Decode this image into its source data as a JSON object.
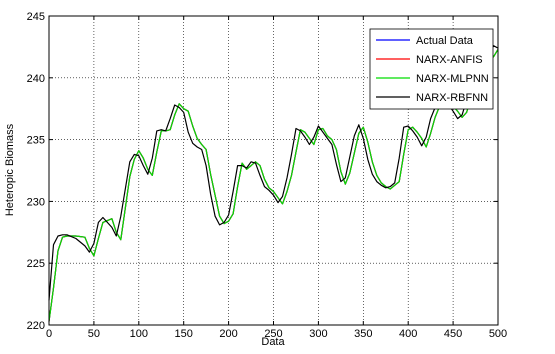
{
  "chart_data": {
    "type": "line",
    "xlabel": "Data",
    "ylabel": "Heteropic Biomass",
    "xlim": [
      0,
      500
    ],
    "ylim": [
      220,
      245
    ],
    "xticks": [
      0,
      50,
      100,
      150,
      200,
      250,
      300,
      350,
      400,
      450,
      500
    ],
    "yticks": [
      220,
      225,
      230,
      235,
      240,
      245
    ],
    "grid": true,
    "legend_position": "top-right",
    "series": [
      {
        "name": "Actual Data",
        "color": "#0000ff",
        "x": [
          0,
          5,
          10,
          15,
          20,
          30,
          40,
          45,
          50,
          55,
          60,
          70,
          75,
          80,
          90,
          95,
          100,
          105,
          110,
          115,
          120,
          125,
          130,
          135,
          140,
          145,
          150,
          155,
          160,
          165,
          170,
          175,
          180,
          185,
          190,
          195,
          200,
          205,
          210,
          215,
          220,
          225,
          230,
          235,
          240,
          245,
          250,
          255,
          260,
          265,
          270,
          275,
          280,
          285,
          290,
          295,
          300,
          305,
          310,
          315,
          320,
          325,
          330,
          335,
          340,
          345,
          350,
          355,
          360,
          365,
          370,
          375,
          380,
          385,
          390,
          395,
          400,
          405,
          410,
          415,
          420,
          425,
          430,
          435,
          440,
          445,
          450,
          455,
          460,
          465,
          470,
          475,
          480,
          485,
          490,
          495,
          500
        ],
        "y": [
          220.3,
          223.0,
          226.0,
          227.1,
          227.2,
          227.2,
          227.1,
          226.2,
          225.6,
          227.0,
          228.3,
          228.6,
          227.5,
          226.9,
          232.0,
          233.4,
          234.1,
          233.5,
          232.6,
          232.1,
          234.0,
          235.7,
          235.7,
          235.8,
          237.0,
          237.9,
          237.5,
          237.3,
          236.1,
          235.1,
          234.6,
          234.2,
          232.2,
          230.5,
          228.8,
          228.2,
          228.4,
          229.0,
          231.2,
          233.1,
          232.6,
          232.9,
          233.2,
          232.9,
          231.8,
          231.1,
          230.8,
          230.3,
          229.8,
          230.8,
          232.1,
          234.0,
          235.8,
          235.6,
          235.1,
          234.6,
          235.8,
          235.9,
          235.3,
          235.0,
          234.2,
          232.4,
          231.4,
          232.3,
          233.9,
          235.5,
          236.0,
          234.8,
          233.2,
          232.1,
          231.5,
          231.2,
          231.0,
          231.3,
          231.6,
          233.8,
          235.8,
          236.0,
          235.6,
          235.1,
          234.4,
          235.5,
          236.8,
          237.7,
          238.0,
          238.1,
          237.7,
          237.3,
          236.8,
          237.2,
          238.4,
          240.0,
          241.0,
          241.4,
          241.5,
          241.7,
          242.3
        ]
      },
      {
        "name": "NARX-ANFIS",
        "color": "#ff0000",
        "x": [
          0,
          5,
          10,
          15,
          20,
          30,
          40,
          45,
          50,
          55,
          60,
          70,
          75,
          80,
          90,
          95,
          100,
          105,
          110,
          115,
          120,
          125,
          130,
          135,
          140,
          145,
          150,
          155,
          160,
          165,
          170,
          175,
          180,
          185,
          190,
          195,
          200,
          205,
          210,
          215,
          220,
          225,
          230,
          235,
          240,
          245,
          250,
          255,
          260,
          265,
          270,
          275,
          280,
          285,
          290,
          295,
          300,
          305,
          310,
          315,
          320,
          325,
          330,
          335,
          340,
          345,
          350,
          355,
          360,
          365,
          370,
          375,
          380,
          385,
          390,
          395,
          400,
          405,
          410,
          415,
          420,
          425,
          430,
          435,
          440,
          445,
          450,
          455,
          460,
          465,
          470,
          475,
          480,
          485,
          490,
          495,
          500
        ],
        "y": [
          220.3,
          223.0,
          226.0,
          227.1,
          227.2,
          227.2,
          227.1,
          226.2,
          225.6,
          227.0,
          228.3,
          228.6,
          227.5,
          226.9,
          232.0,
          233.4,
          234.1,
          233.5,
          232.6,
          232.1,
          234.0,
          235.7,
          235.7,
          235.8,
          237.0,
          237.9,
          237.5,
          237.3,
          236.1,
          235.1,
          234.6,
          234.2,
          232.2,
          230.5,
          228.8,
          228.2,
          228.4,
          229.0,
          231.2,
          233.1,
          232.6,
          232.9,
          233.2,
          232.9,
          231.8,
          231.1,
          230.8,
          230.3,
          229.8,
          230.8,
          232.1,
          234.0,
          235.8,
          235.6,
          235.1,
          234.6,
          235.8,
          235.9,
          235.3,
          235.0,
          234.2,
          232.4,
          231.4,
          232.3,
          233.9,
          235.5,
          236.0,
          234.8,
          233.2,
          232.1,
          231.5,
          231.2,
          231.0,
          231.3,
          231.6,
          233.8,
          235.8,
          236.0,
          235.6,
          235.1,
          234.4,
          235.5,
          236.8,
          237.7,
          238.0,
          238.1,
          237.7,
          237.3,
          236.8,
          237.2,
          238.4,
          240.0,
          241.0,
          241.4,
          241.5,
          241.7,
          242.3
        ]
      },
      {
        "name": "NARX-MLPNN",
        "color": "#00dd00",
        "x": [
          0,
          5,
          10,
          15,
          20,
          30,
          40,
          45,
          50,
          55,
          60,
          70,
          75,
          80,
          90,
          95,
          100,
          105,
          110,
          115,
          120,
          125,
          130,
          135,
          140,
          145,
          150,
          155,
          160,
          165,
          170,
          175,
          180,
          185,
          190,
          195,
          200,
          205,
          210,
          215,
          220,
          225,
          230,
          235,
          240,
          245,
          250,
          255,
          260,
          265,
          270,
          275,
          280,
          285,
          290,
          295,
          300,
          305,
          310,
          315,
          320,
          325,
          330,
          335,
          340,
          345,
          350,
          355,
          360,
          365,
          370,
          375,
          380,
          385,
          390,
          395,
          400,
          405,
          410,
          415,
          420,
          425,
          430,
          435,
          440,
          445,
          450,
          455,
          460,
          465,
          470,
          475,
          480,
          485,
          490,
          495,
          500
        ],
        "y": [
          220.3,
          223.0,
          226.0,
          227.1,
          227.2,
          227.2,
          227.1,
          226.2,
          225.6,
          227.0,
          228.3,
          228.6,
          227.5,
          226.9,
          232.0,
          233.4,
          234.1,
          233.5,
          232.6,
          232.1,
          234.0,
          235.7,
          235.7,
          235.8,
          237.0,
          237.9,
          237.5,
          237.3,
          236.1,
          235.1,
          234.6,
          234.2,
          232.2,
          230.5,
          228.8,
          228.2,
          228.4,
          229.0,
          231.2,
          233.1,
          232.6,
          232.9,
          233.2,
          232.9,
          231.8,
          231.1,
          230.8,
          230.3,
          229.8,
          230.8,
          232.1,
          234.0,
          235.8,
          235.6,
          235.1,
          234.6,
          235.8,
          235.9,
          235.3,
          235.0,
          234.2,
          232.4,
          231.4,
          232.3,
          233.9,
          235.5,
          236.0,
          234.8,
          233.2,
          232.1,
          231.5,
          231.2,
          231.0,
          231.3,
          231.6,
          233.8,
          235.8,
          236.0,
          235.6,
          235.1,
          234.4,
          235.5,
          236.8,
          237.7,
          238.0,
          238.1,
          237.7,
          237.3,
          236.8,
          237.2,
          238.4,
          240.0,
          241.0,
          241.4,
          241.5,
          241.7,
          242.3
        ]
      },
      {
        "name": "NARX-RBFNN",
        "color": "#000000",
        "x": [
          0,
          5,
          10,
          15,
          20,
          30,
          40,
          45,
          50,
          55,
          60,
          70,
          75,
          80,
          90,
          95,
          100,
          105,
          110,
          115,
          120,
          125,
          130,
          135,
          140,
          145,
          150,
          155,
          160,
          165,
          170,
          175,
          180,
          185,
          190,
          195,
          200,
          205,
          210,
          215,
          220,
          225,
          230,
          235,
          240,
          245,
          250,
          255,
          260,
          265,
          270,
          275,
          280,
          285,
          290,
          295,
          300,
          305,
          310,
          315,
          320,
          325,
          330,
          335,
          340,
          345,
          350,
          355,
          360,
          365,
          370,
          375,
          380,
          385,
          390,
          395,
          400,
          405,
          410,
          415,
          420,
          425,
          430,
          435,
          440,
          445,
          450,
          455,
          460,
          465,
          470,
          475,
          480,
          485,
          490,
          495,
          500
        ],
        "y": [
          222.0,
          226.5,
          227.2,
          227.3,
          227.3,
          227.0,
          226.4,
          225.9,
          226.6,
          228.3,
          228.7,
          227.9,
          227.2,
          228.8,
          233.2,
          233.8,
          233.7,
          232.9,
          232.2,
          233.5,
          235.7,
          235.8,
          235.7,
          236.7,
          237.8,
          237.6,
          237.2,
          235.6,
          234.7,
          234.4,
          234.2,
          232.9,
          230.6,
          228.8,
          228.1,
          228.3,
          228.9,
          230.8,
          232.9,
          232.9,
          232.7,
          233.2,
          233.1,
          232.1,
          231.2,
          230.9,
          230.5,
          229.9,
          230.4,
          231.9,
          233.8,
          235.9,
          235.7,
          235.2,
          234.6,
          235.2,
          236.1,
          235.6,
          235.1,
          234.6,
          233.0,
          231.6,
          231.9,
          233.6,
          235.3,
          236.2,
          235.1,
          233.4,
          232.2,
          231.6,
          231.3,
          231.1,
          231.2,
          231.5,
          233.5,
          236.0,
          236.1,
          235.7,
          235.2,
          234.5,
          235.2,
          236.7,
          237.6,
          238.0,
          238.1,
          237.8,
          237.3,
          236.7,
          237.0,
          238.2,
          239.8,
          240.9,
          241.3,
          241.5,
          241.8,
          242.6,
          242.4
        ]
      }
    ]
  }
}
